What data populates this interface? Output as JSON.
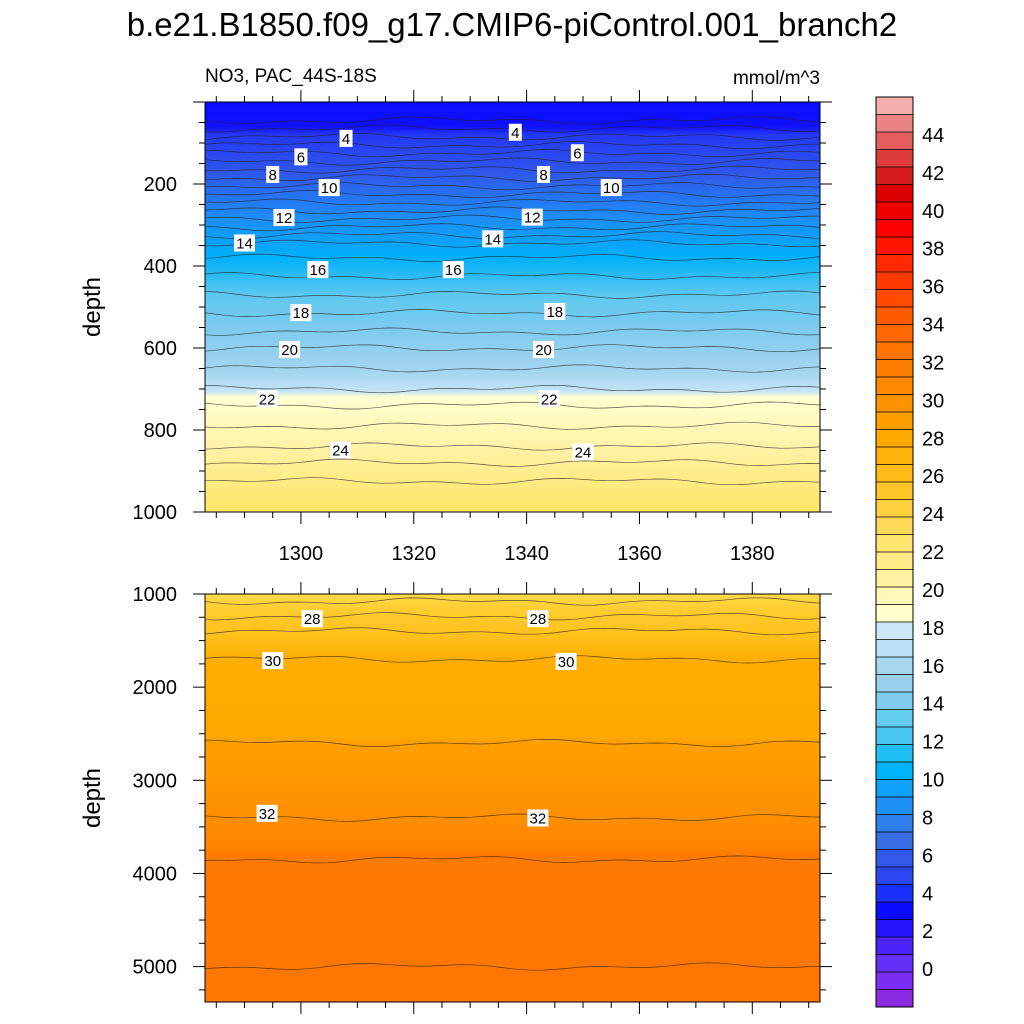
{
  "chart_data": {
    "type": "contour",
    "title": "b.e21.B1850.f09_g17.CMIP6-piControl.001_branch2",
    "subtitle_left": "NO3, PAC_44S-18S",
    "units": "mmol/m^3",
    "xlabel": "",
    "xlim": [
      1283,
      1392
    ],
    "x_ticks": [
      1300,
      1320,
      1340,
      1360,
      1380
    ],
    "x_tick_labels": [
      "1300",
      "1320",
      "1340",
      "1360",
      "1380"
    ],
    "colorbar": {
      "levels": [
        -2,
        0,
        2,
        4,
        6,
        8,
        10,
        12,
        14,
        16,
        18,
        20,
        22,
        24,
        26,
        28,
        30,
        32,
        34,
        36,
        38,
        40,
        42,
        44,
        46
      ],
      "label_values": [
        0,
        2,
        4,
        6,
        8,
        10,
        12,
        14,
        16,
        18,
        20,
        22,
        24,
        26,
        28,
        30,
        32,
        34,
        36,
        38,
        40,
        42,
        44
      ],
      "labels": [
        "0",
        "2",
        "4",
        "6",
        "8",
        "10",
        "12",
        "14",
        "16",
        "18",
        "20",
        "22",
        "24",
        "26",
        "28",
        "30",
        "32",
        "34",
        "36",
        "38",
        "40",
        "42",
        "44"
      ],
      "colors": [
        "#8A2BE2",
        "#7B2DF2",
        "#6430F8",
        "#4B22FA",
        "#2414FC",
        "#0A0AFF",
        "#1B30FA",
        "#2C46F2",
        "#3258EA",
        "#3A6CE4",
        "#2F80EC",
        "#1E90F5",
        "#0FA0FA",
        "#00B2FA",
        "#20C0F4",
        "#48C8F0",
        "#64CCEE",
        "#80CCEE",
        "#98D0EE",
        "#A8D8F0",
        "#BCE0F4",
        "#CCE8F6",
        "#FFFFCC",
        "#FFF8B8",
        "#FFF2A0",
        "#FFEC88",
        "#FFE470",
        "#FFDA58",
        "#FFD040",
        "#FFC628",
        "#FFBC18",
        "#FFB20A",
        "#FFA800",
        "#FF9E00",
        "#FF9200",
        "#FF8800",
        "#FF7E00",
        "#FF7400",
        "#FF6800",
        "#FF5A00",
        "#FF4A00",
        "#FF3A00",
        "#FF2800",
        "#FF1400",
        "#FF0000",
        "#EE0000",
        "#DD0000",
        "#D51C1C",
        "#DE3C3C",
        "#E45C5C",
        "#EC8484",
        "#F4AEAE"
      ]
    },
    "panels": [
      {
        "name": "upper",
        "ylabel": "depth",
        "ylim": [
          1000,
          0
        ],
        "y_ticks": [
          200,
          400,
          600,
          800,
          1000
        ],
        "y_tick_labels": [
          "200",
          "400",
          "600",
          "800",
          "1000"
        ],
        "contour_depths_mean": [
          45,
          65,
          85,
          105,
          125,
          145,
          165,
          185,
          205,
          225,
          245,
          265,
          285,
          305,
          325,
          345,
          380,
          425,
          470,
          515,
          560,
          600,
          650,
          700,
          740,
          790,
          840,
          880,
          925
        ],
        "contour_labels": [
          {
            "text": "4",
            "x": 1308,
            "depth": 90
          },
          {
            "text": "4",
            "x": 1338,
            "depth": 75
          },
          {
            "text": "6",
            "x": 1300,
            "depth": 135
          },
          {
            "text": "6",
            "x": 1349,
            "depth": 125
          },
          {
            "text": "8",
            "x": 1295,
            "depth": 178
          },
          {
            "text": "8",
            "x": 1343,
            "depth": 178
          },
          {
            "text": "10",
            "x": 1305,
            "depth": 210
          },
          {
            "text": "10",
            "x": 1355,
            "depth": 210
          },
          {
            "text": "12",
            "x": 1297,
            "depth": 283
          },
          {
            "text": "12",
            "x": 1341,
            "depth": 282
          },
          {
            "text": "14",
            "x": 1290,
            "depth": 345
          },
          {
            "text": "14",
            "x": 1334,
            "depth": 335
          },
          {
            "text": "16",
            "x": 1303,
            "depth": 410
          },
          {
            "text": "16",
            "x": 1327,
            "depth": 410
          },
          {
            "text": "18",
            "x": 1300,
            "depth": 515
          },
          {
            "text": "18",
            "x": 1345,
            "depth": 512
          },
          {
            "text": "20",
            "x": 1298,
            "depth": 605
          },
          {
            "text": "20",
            "x": 1343,
            "depth": 605
          },
          {
            "text": "22",
            "x": 1294,
            "depth": 725
          },
          {
            "text": "22",
            "x": 1344,
            "depth": 725
          },
          {
            "text": "24",
            "x": 1307,
            "depth": 850
          },
          {
            "text": "24",
            "x": 1350,
            "depth": 855
          }
        ]
      },
      {
        "name": "lower",
        "ylabel": "depth",
        "ylim": [
          5380,
          1000
        ],
        "y_ticks": [
          1000,
          2000,
          3000,
          4000,
          5000
        ],
        "y_tick_labels": [
          "1000",
          "2000",
          "3000",
          "4000",
          "5000"
        ],
        "contour_depths_mean": [
          1080,
          1240,
          1400,
          1700,
          2600,
          3400,
          3850,
          5000
        ],
        "contour_labels": [
          {
            "text": "28",
            "x": 1302,
            "depth": 1270
          },
          {
            "text": "28",
            "x": 1342,
            "depth": 1270
          },
          {
            "text": "30",
            "x": 1295,
            "depth": 1720
          },
          {
            "text": "30",
            "x": 1347,
            "depth": 1730
          },
          {
            "text": "32",
            "x": 1294,
            "depth": 3360
          },
          {
            "text": "32",
            "x": 1342,
            "depth": 3410
          }
        ]
      }
    ]
  }
}
